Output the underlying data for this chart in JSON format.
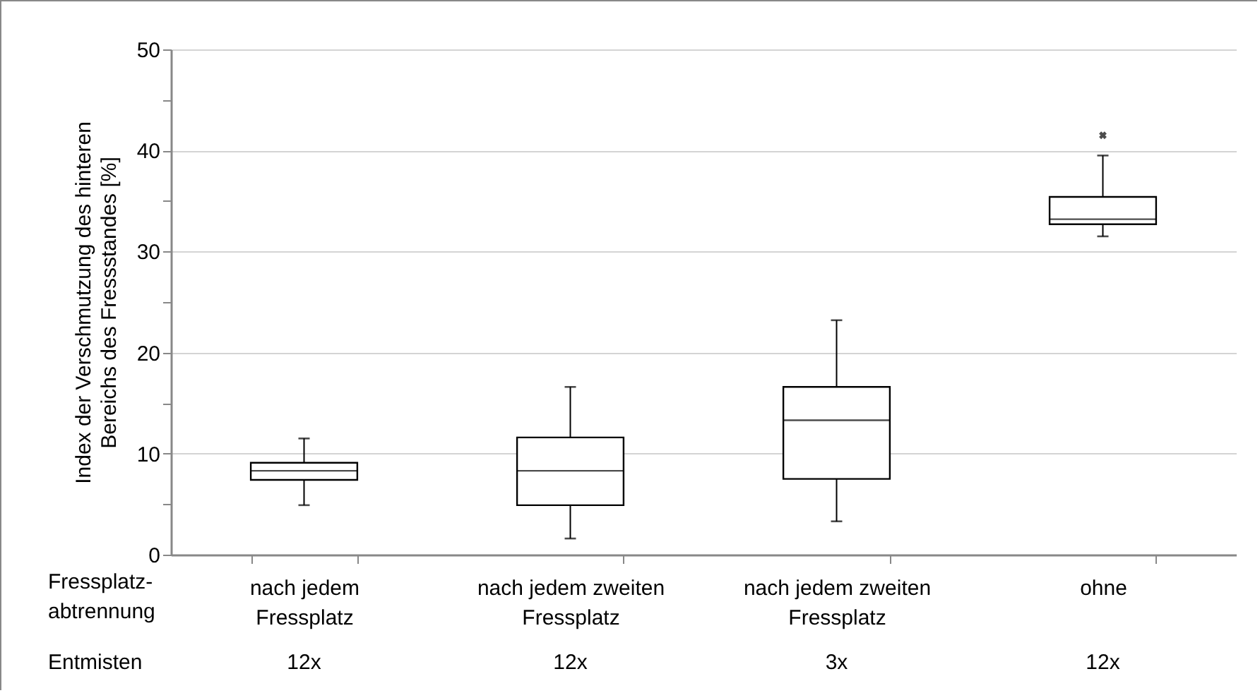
{
  "chart_data": {
    "type": "box",
    "ylabel": "Index der Verschmutzung des hinteren Bereichs des Fressstandes [%]",
    "xlabel": "Fressplatz-abtrennung",
    "categories": [
      "nach jedem Fressplatz",
      "nach jedem zweiten Fressplatz",
      "nach jedem zweiten Fressplatz",
      "ohne"
    ],
    "boxes": [
      {
        "low": 4.9,
        "q1": 7.4,
        "median": 8.3,
        "q3": 9.1,
        "high": 11.5
      },
      {
        "low": 1.6,
        "q1": 4.9,
        "median": 8.3,
        "q3": 11.6,
        "high": 16.6
      },
      {
        "low": 3.3,
        "q1": 7.5,
        "median": 13.3,
        "q3": 16.6,
        "high": 23.2
      },
      {
        "low": 31.5,
        "q1": 32.7,
        "median": 33.2,
        "q3": 35.4,
        "high": 39.5,
        "outliers": [
          41.5
        ]
      }
    ],
    "annotations": [
      "Entmisten",
      "12x",
      "12x",
      "3x",
      "12x"
    ],
    "ylim": [
      0,
      50
    ],
    "yticks": [
      0,
      {
        "value": 5,
        "label": null
      },
      10,
      {
        "value": 15,
        "label": null
      },
      20,
      {
        "value": 25,
        "label": null
      },
      30,
      {
        "value": 35,
        "label": null
      },
      40,
      {
        "value": 45,
        "label": null
      },
      50
    ],
    "grid": "y"
  }
}
